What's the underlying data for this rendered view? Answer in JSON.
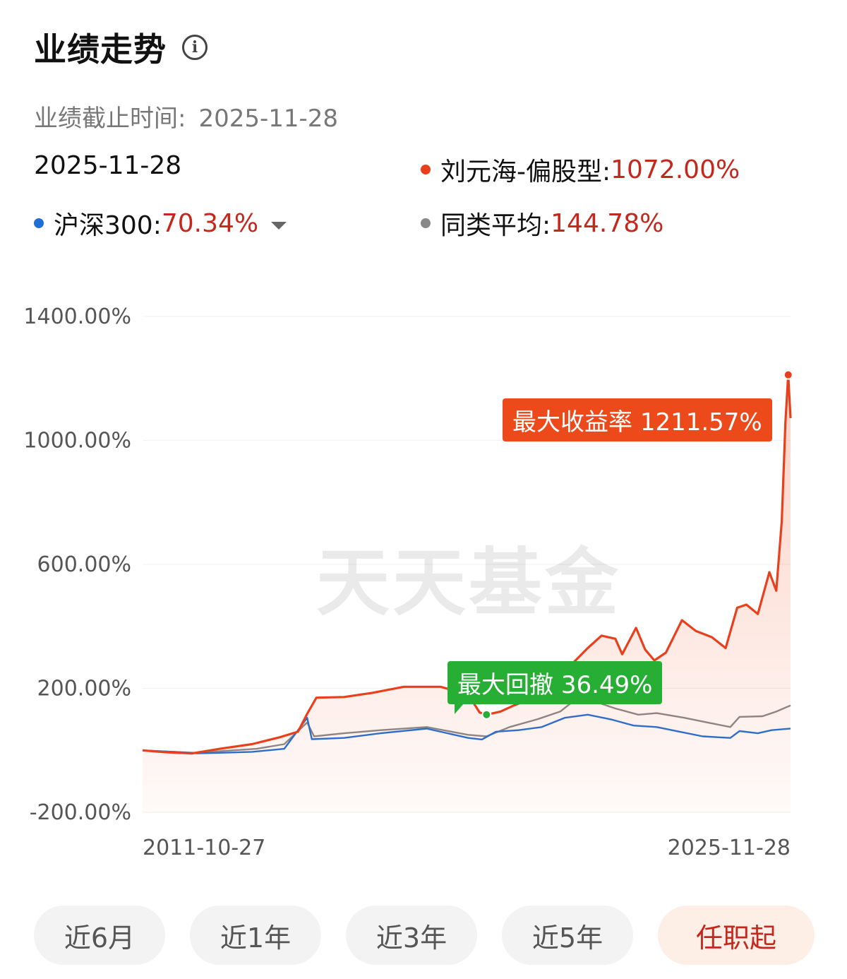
{
  "header": {
    "title": "业绩走势",
    "info_icon": "info-circle-icon"
  },
  "as_of": {
    "label": "业绩截止时间:",
    "date": "2025-11-28"
  },
  "legend": {
    "date": "2025-11-28",
    "items": [
      {
        "name": "刘元海-偏股型:",
        "value": "1072.00%",
        "color": "#e8401c"
      },
      {
        "name": "沪深300:",
        "value": "70.34%",
        "color": "#1f6fd6",
        "has_dropdown": true
      },
      {
        "name": "同类平均:",
        "value": "144.78%",
        "color": "#888888"
      }
    ]
  },
  "callouts": {
    "max_return": {
      "label": "最大收益率",
      "value": "1211.57%"
    },
    "max_drawdown": {
      "label": "最大回撤",
      "value": "36.49%"
    }
  },
  "watermark": "天天基金",
  "tabs": [
    {
      "label": "近6月",
      "active": false
    },
    {
      "label": "近1年",
      "active": false
    },
    {
      "label": "近3年",
      "active": false
    },
    {
      "label": "近5年",
      "active": false
    },
    {
      "label": "任职起",
      "active": true
    }
  ],
  "chart_data": {
    "type": "line",
    "y_tick_labels": [
      "1400.00%",
      "1000.00%",
      "600.00%",
      "200.00%",
      "-200.00%"
    ],
    "x_tick_labels": [
      "2011-10-27",
      "2025-11-28"
    ],
    "ylim": [
      -200,
      1400
    ],
    "xlim": [
      2011.82,
      2025.91
    ],
    "series": [
      {
        "name": "刘元海-偏股型",
        "color": "#e8401c",
        "area": true,
        "points": [
          [
            2011.82,
            0
          ],
          [
            2012.3,
            -6
          ],
          [
            2012.9,
            -10
          ],
          [
            2013.5,
            5
          ],
          [
            2014.2,
            20
          ],
          [
            2014.8,
            42
          ],
          [
            2015.2,
            60
          ],
          [
            2015.4,
            118
          ],
          [
            2015.6,
            170
          ],
          [
            2016.2,
            172
          ],
          [
            2016.8,
            185
          ],
          [
            2017.5,
            205
          ],
          [
            2018.3,
            205
          ],
          [
            2018.9,
            180
          ],
          [
            2019.15,
            122
          ],
          [
            2019.3,
            115
          ],
          [
            2019.6,
            125
          ],
          [
            2019.9,
            145
          ],
          [
            2020.4,
            175
          ],
          [
            2020.7,
            218
          ],
          [
            2021.0,
            245
          ],
          [
            2021.2,
            285
          ],
          [
            2021.5,
            330
          ],
          [
            2021.8,
            370
          ],
          [
            2022.1,
            360
          ],
          [
            2022.25,
            310
          ],
          [
            2022.55,
            395
          ],
          [
            2022.75,
            325
          ],
          [
            2022.95,
            290
          ],
          [
            2023.2,
            315
          ],
          [
            2023.55,
            420
          ],
          [
            2023.85,
            385
          ],
          [
            2024.2,
            365
          ],
          [
            2024.5,
            330
          ],
          [
            2024.75,
            460
          ],
          [
            2024.95,
            470
          ],
          [
            2025.2,
            440
          ],
          [
            2025.45,
            575
          ],
          [
            2025.6,
            515
          ],
          [
            2025.72,
            740
          ],
          [
            2025.8,
            1060
          ],
          [
            2025.86,
            1211.57
          ],
          [
            2025.91,
            1072
          ]
        ]
      },
      {
        "name": "沪深300",
        "color": "#1f6fd6",
        "area": false,
        "points": [
          [
            2011.82,
            0
          ],
          [
            2012.5,
            -5
          ],
          [
            2013.0,
            -10
          ],
          [
            2013.5,
            -8
          ],
          [
            2014.2,
            -5
          ],
          [
            2014.9,
            5
          ],
          [
            2015.4,
            105
          ],
          [
            2015.5,
            36
          ],
          [
            2016.2,
            40
          ],
          [
            2017.0,
            55
          ],
          [
            2018.0,
            70
          ],
          [
            2018.9,
            40
          ],
          [
            2019.2,
            35
          ],
          [
            2019.5,
            60
          ],
          [
            2020.0,
            65
          ],
          [
            2020.5,
            75
          ],
          [
            2021.0,
            105
          ],
          [
            2021.5,
            115
          ],
          [
            2022.0,
            100
          ],
          [
            2022.5,
            80
          ],
          [
            2023.0,
            75
          ],
          [
            2023.5,
            60
          ],
          [
            2024.0,
            45
          ],
          [
            2024.6,
            40
          ],
          [
            2024.8,
            62
          ],
          [
            2025.2,
            55
          ],
          [
            2025.5,
            65
          ],
          [
            2025.91,
            70.34
          ]
        ]
      },
      {
        "name": "同类平均",
        "color": "#888888",
        "area": false,
        "points": [
          [
            2011.82,
            0
          ],
          [
            2012.5,
            -5
          ],
          [
            2013.0,
            -8
          ],
          [
            2013.6,
            -2
          ],
          [
            2014.3,
            5
          ],
          [
            2014.9,
            20
          ],
          [
            2015.4,
            90
          ],
          [
            2015.55,
            45
          ],
          [
            2016.2,
            55
          ],
          [
            2017.0,
            65
          ],
          [
            2018.0,
            75
          ],
          [
            2018.9,
            50
          ],
          [
            2019.3,
            45
          ],
          [
            2019.8,
            75
          ],
          [
            2020.4,
            100
          ],
          [
            2020.9,
            125
          ],
          [
            2021.2,
            160
          ],
          [
            2021.6,
            160
          ],
          [
            2022.1,
            135
          ],
          [
            2022.6,
            115
          ],
          [
            2023.0,
            120
          ],
          [
            2023.6,
            105
          ],
          [
            2024.1,
            90
          ],
          [
            2024.6,
            75
          ],
          [
            2024.8,
            108
          ],
          [
            2025.3,
            110
          ],
          [
            2025.6,
            125
          ],
          [
            2025.91,
            144.78
          ]
        ]
      }
    ],
    "markers": [
      {
        "series": "刘元海-偏股型",
        "x": 2025.86,
        "y": 1211.57,
        "color": "#e8401c"
      },
      {
        "series": "刘元海-偏股型",
        "x": 2019.3,
        "y": 115,
        "color": "#27ae35"
      }
    ]
  }
}
